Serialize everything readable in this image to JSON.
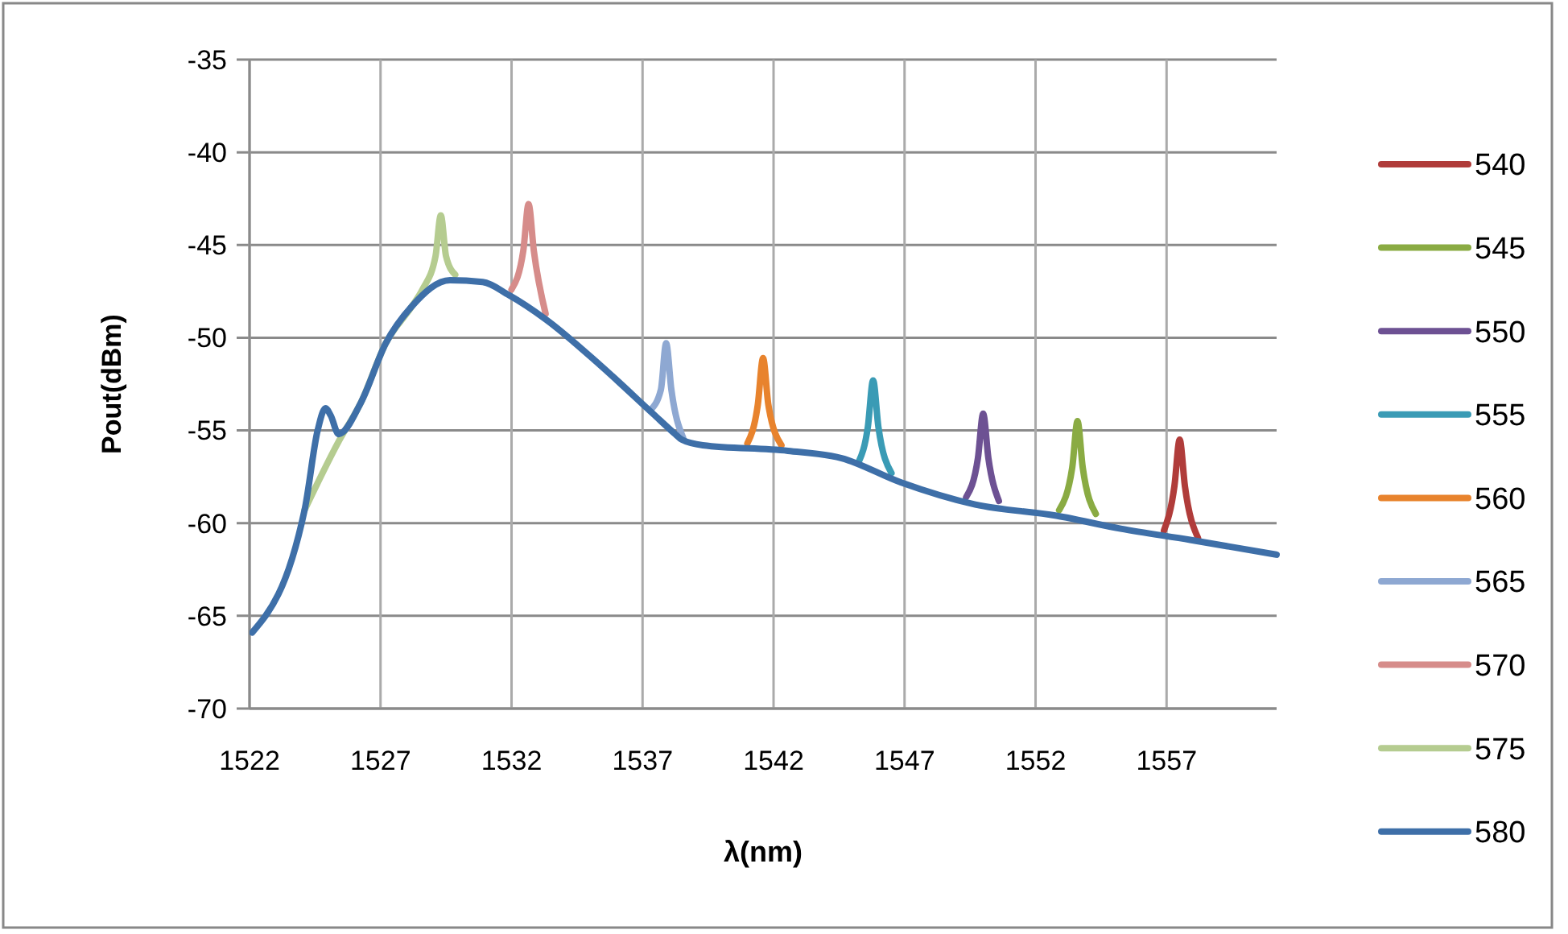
{
  "chart_data": {
    "type": "line",
    "xlabel": "λ(nm)",
    "ylabel": "Pout(dBm)",
    "xlim": [
      1522,
      1561.2
    ],
    "ylim": [
      -70,
      -35
    ],
    "xticks": [
      1522,
      1527,
      1532,
      1537,
      1542,
      1547,
      1552,
      1557
    ],
    "yticks": [
      -70,
      -65,
      -60,
      -55,
      -50,
      -45,
      -40,
      -35
    ],
    "grid": true,
    "legend": "right",
    "marker": "none",
    "line_style": "solid",
    "series": [
      {
        "name": "540",
        "color": "#b03c3a",
        "x": [
          1556.9,
          1557.3,
          1557.5,
          1557.7,
          1558.2
        ],
        "values": [
          -60.4,
          -58,
          -55.5,
          -58,
          -60.8
        ]
      },
      {
        "name": "545",
        "color": "#8aab43",
        "x": [
          1552.9,
          1553.4,
          1553.6,
          1553.8,
          1554.3
        ],
        "values": [
          -59.3,
          -57,
          -54.5,
          -57,
          -59.5
        ]
      },
      {
        "name": "550",
        "color": "#6d5193",
        "x": [
          1549.35,
          1549.8,
          1550,
          1550.2,
          1550.6
        ],
        "values": [
          -58.6,
          -56.5,
          -54.1,
          -56.5,
          -58.8
        ]
      },
      {
        "name": "555",
        "color": "#3a9bb5",
        "x": [
          1545.25,
          1545.6,
          1545.8,
          1546,
          1546.5
        ],
        "values": [
          -56.7,
          -54.8,
          -52.3,
          -54.8,
          -57.3
        ]
      },
      {
        "name": "560",
        "color": "#e8832d",
        "x": [
          1541,
          1541.4,
          1541.6,
          1541.8,
          1542.3
        ],
        "values": [
          -55.7,
          -53.6,
          -51.1,
          -53.6,
          -55.8
        ]
      },
      {
        "name": "565",
        "color": "#8ea8d2",
        "x": [
          1537.3,
          1537.7,
          1537.9,
          1538.1,
          1538.55
        ],
        "values": [
          -53.9,
          -52.8,
          -50.3,
          -52.8,
          -55.4
        ]
      },
      {
        "name": "570",
        "color": "#d68c8a",
        "x": [
          1532,
          1532.45,
          1532.65,
          1532.85,
          1533.3
        ],
        "values": [
          -47.4,
          -45.3,
          -42.8,
          -45.3,
          -48.7
        ]
      },
      {
        "name": "575",
        "color": "#b5cc90",
        "x": [
          1524.1,
          1525.4,
          1526.25,
          1527.2,
          1528.2,
          1528.6,
          1529.1,
          1529.3,
          1529.5,
          1529.85
        ],
        "values": [
          -59.3,
          -55.6,
          -53.5,
          -50.3,
          -48.3,
          -47.4,
          -45.6,
          -43.4,
          -45.6,
          -46.6
        ]
      },
      {
        "name": "580",
        "color": "#3e6fa8",
        "x": [
          1522.1,
          1524.1,
          1524.6,
          1524.9,
          1525.1,
          1525.4,
          1526.25,
          1527.2,
          1528.2,
          1529.65,
          1530.9,
          1531.9,
          1533.3,
          1535.4,
          1537.4,
          1538.25,
          1538.5,
          1539.3,
          1542.55,
          1544.6,
          1546.85,
          1549.7,
          1552.8,
          1555.25,
          1557.9,
          1561.2
        ],
        "values": [
          -65.9,
          -59.3,
          -55,
          -53.8,
          -54.2,
          -55.2,
          -53.5,
          -50.3,
          -48.3,
          -46.9,
          -47,
          -47.7,
          -49,
          -51.5,
          -54.1,
          -55.2,
          -55.5,
          -55.8,
          -56.1,
          -56.5,
          -57.8,
          -59,
          -59.6,
          -60.3,
          -60.9,
          -61.7
        ]
      }
    ]
  }
}
